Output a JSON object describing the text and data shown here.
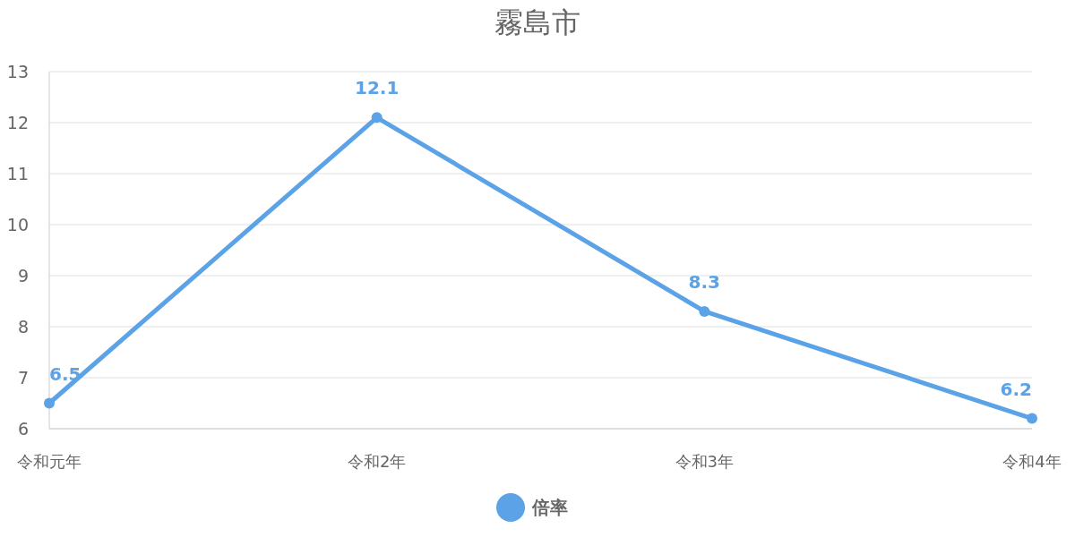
{
  "chart_data": {
    "type": "line",
    "title": "霧島市",
    "categories": [
      "令和元年",
      "令和2年",
      "令和3年",
      "令和4年"
    ],
    "series": [
      {
        "name": "倍率",
        "color": "#5ba3e6",
        "values": [
          6.5,
          12.1,
          8.3,
          6.2
        ]
      }
    ],
    "ylim": [
      6,
      13
    ],
    "yticks": [
      6,
      7,
      8,
      9,
      10,
      11,
      12,
      13
    ],
    "grid": "y",
    "legend": "bottom",
    "marker": "circle",
    "data_labels": true
  }
}
